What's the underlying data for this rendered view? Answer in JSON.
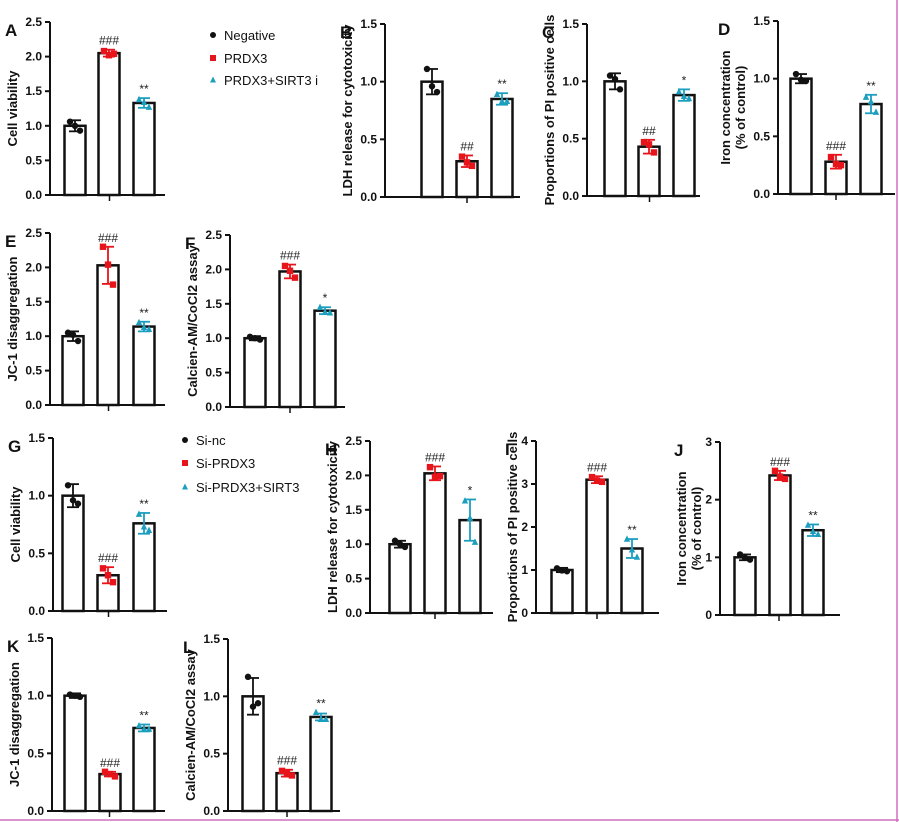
{
  "colors": {
    "group1": "#111111",
    "group2": "#e8141b",
    "group3": "#1c9fbf",
    "border": "#d070c0"
  },
  "legends": [
    {
      "entries": [
        {
          "label": "Negative",
          "marker": "circle",
          "color": "#111111"
        },
        {
          "label": "PRDX3",
          "marker": "square",
          "color": "#e8141b"
        },
        {
          "label": "PRDX3+SIRT3 i",
          "marker": "triangle",
          "color": "#1c9fbf"
        }
      ]
    },
    {
      "entries": [
        {
          "label": "Si-nc",
          "marker": "circle",
          "color": "#111111"
        },
        {
          "label": "Si-PRDX3",
          "marker": "square",
          "color": "#e8141b"
        },
        {
          "label": "Si-PRDX3+SIRT3",
          "marker": "triangle",
          "color": "#1c9fbf"
        }
      ]
    }
  ],
  "chart_data": [
    {
      "id": "A",
      "type": "bar",
      "ylabel": [
        "Cell viability"
      ],
      "ylim": [
        0,
        2.5
      ],
      "ticks": [
        "0.0",
        "0.5",
        "1.0",
        "1.5",
        "2.0",
        "2.5"
      ],
      "tickvals": [
        0,
        0.5,
        1,
        1.5,
        2,
        2.5
      ],
      "values": [
        1.0,
        2.05,
        1.33
      ],
      "errors": [
        0.08,
        0.05,
        0.07
      ],
      "points": [
        [
          1.06,
          0.93,
          1.0
        ],
        [
          2.08,
          2.04,
          2.02
        ],
        [
          1.38,
          1.27,
          1.34
        ]
      ],
      "annotations": [
        "",
        "###",
        "**"
      ],
      "legend": 0
    },
    {
      "id": "B",
      "type": "bar",
      "ylabel": [
        "LDH release for cytotoxicity"
      ],
      "ylim": [
        0,
        1.5
      ],
      "ticks": [
        "0.0",
        "0.5",
        "1.0",
        "1.5"
      ],
      "tickvals": [
        0,
        0.5,
        1,
        1.5
      ],
      "values": [
        1.0,
        0.31,
        0.85
      ],
      "errors": [
        0.11,
        0.05,
        0.05
      ],
      "points": [
        [
          1.11,
          0.91,
          0.96
        ],
        [
          0.35,
          0.27,
          0.3
        ],
        [
          0.89,
          0.83,
          0.83
        ]
      ],
      "annotations": [
        "",
        "##",
        "**"
      ],
      "legend": 0
    },
    {
      "id": "C",
      "type": "bar",
      "ylabel": [
        "Proportions of PI positive cells"
      ],
      "ylim": [
        0,
        1.5
      ],
      "ticks": [
        "0.0",
        "0.5",
        "1.0",
        "1.5"
      ],
      "tickvals": [
        0,
        0.5,
        1,
        1.5
      ],
      "values": [
        1.0,
        0.43,
        0.88
      ],
      "errors": [
        0.07,
        0.06,
        0.05
      ],
      "points": [
        [
          1.05,
          0.93,
          1.02
        ],
        [
          0.47,
          0.38,
          0.45
        ],
        [
          0.91,
          0.85,
          0.87
        ]
      ],
      "annotations": [
        "",
        "##",
        "*"
      ],
      "legend": 0
    },
    {
      "id": "D",
      "type": "bar",
      "ylabel": [
        "Iron concentration",
        "(% of control)"
      ],
      "ylim": [
        0,
        1.5
      ],
      "ticks": [
        "0.0",
        "0.5",
        "1.0",
        "1.5"
      ],
      "tickvals": [
        0,
        0.5,
        1,
        1.5
      ],
      "values": [
        1.0,
        0.28,
        0.78
      ],
      "errors": [
        0.04,
        0.06,
        0.08
      ],
      "points": [
        [
          1.04,
          0.98,
          0.99
        ],
        [
          0.32,
          0.25,
          0.26
        ],
        [
          0.84,
          0.71,
          0.8
        ]
      ],
      "annotations": [
        "",
        "###",
        "**"
      ],
      "legend": 0
    },
    {
      "id": "E",
      "type": "bar",
      "ylabel": [
        "JC-1 disaggregation"
      ],
      "ylim": [
        0,
        2.5
      ],
      "ticks": [
        "0.0",
        "0.5",
        "1.0",
        "1.5",
        "2.0",
        "2.5"
      ],
      "tickvals": [
        0,
        0.5,
        1,
        1.5,
        2,
        2.5
      ],
      "values": [
        1.0,
        2.03,
        1.14
      ],
      "errors": [
        0.07,
        0.27,
        0.07
      ],
      "points": [
        [
          1.05,
          0.93,
          1.02
        ],
        [
          2.3,
          1.75,
          2.04
        ],
        [
          1.2,
          1.1,
          1.13
        ]
      ],
      "annotations": [
        "",
        "###",
        "**"
      ],
      "legend": 0
    },
    {
      "id": "F",
      "type": "bar",
      "ylabel": [
        "Calcien-AM/CoCl2 assay"
      ],
      "ylim": [
        0,
        2.5
      ],
      "ticks": [
        "0.0",
        "0.5",
        "1.0",
        "1.5",
        "2.0",
        "2.5"
      ],
      "tickvals": [
        0,
        0.5,
        1,
        1.5,
        2,
        2.5
      ],
      "values": [
        1.0,
        1.97,
        1.4
      ],
      "errors": [
        0.03,
        0.1,
        0.05
      ],
      "points": [
        [
          1.02,
          0.98,
          1.0
        ],
        [
          2.05,
          1.88,
          1.98
        ],
        [
          1.45,
          1.37,
          1.38
        ]
      ],
      "annotations": [
        "",
        "###",
        "*"
      ],
      "legend": 0
    },
    {
      "id": "G",
      "type": "bar",
      "ylabel": [
        "Cell viability"
      ],
      "ylim": [
        0,
        1.5
      ],
      "ticks": [
        "0.0",
        "0.5",
        "1.0",
        "1.5"
      ],
      "tickvals": [
        0,
        0.5,
        1,
        1.5
      ],
      "values": [
        1.0,
        0.31,
        0.76
      ],
      "errors": [
        0.1,
        0.07,
        0.09
      ],
      "points": [
        [
          1.09,
          0.93,
          0.96
        ],
        [
          0.37,
          0.25,
          0.31
        ],
        [
          0.84,
          0.7,
          0.73
        ]
      ],
      "annotations": [
        "",
        "###",
        "**"
      ],
      "legend": 1
    },
    {
      "id": "H",
      "type": "bar",
      "ylabel": [
        "LDH release for cytotoxicity"
      ],
      "ylim": [
        0,
        2.5
      ],
      "ticks": [
        "0.0",
        "0.5",
        "1.0",
        "1.5",
        "2.0",
        "2.5"
      ],
      "tickvals": [
        0,
        0.5,
        1,
        1.5,
        2,
        2.5
      ],
      "values": [
        1.0,
        2.03,
        1.35
      ],
      "errors": [
        0.05,
        0.1,
        0.3
      ],
      "points": [
        [
          1.05,
          0.96,
          1.0
        ],
        [
          2.12,
          1.99,
          1.98
        ],
        [
          1.63,
          1.03,
          1.38
        ]
      ],
      "annotations": [
        "",
        "###",
        "*"
      ],
      "legend": 1
    },
    {
      "id": "I",
      "type": "bar",
      "ylabel": [
        "Proportions of PI positive cells"
      ],
      "ylim": [
        0,
        4
      ],
      "ticks": [
        "0",
        "1",
        "2",
        "3",
        "4"
      ],
      "tickvals": [
        0,
        1,
        2,
        3,
        4
      ],
      "values": [
        1.0,
        3.1,
        1.5
      ],
      "errors": [
        0.05,
        0.08,
        0.22
      ],
      "points": [
        [
          1.04,
          0.97,
          0.99
        ],
        [
          3.16,
          3.05,
          3.08
        ],
        [
          1.72,
          1.3,
          1.47
        ]
      ],
      "annotations": [
        "",
        "###",
        "**"
      ],
      "legend": 1
    },
    {
      "id": "J",
      "type": "bar",
      "ylabel": [
        "Iron concentration",
        "(% of control)"
      ],
      "ylim": [
        0,
        3
      ],
      "ticks": [
        "0",
        "1",
        "2",
        "3"
      ],
      "tickvals": [
        0,
        1,
        2,
        3
      ],
      "values": [
        1.0,
        2.42,
        1.47
      ],
      "errors": [
        0.05,
        0.08,
        0.1
      ],
      "points": [
        [
          1.05,
          0.96,
          0.99
        ],
        [
          2.5,
          2.36,
          2.4
        ],
        [
          1.56,
          1.4,
          1.45
        ]
      ],
      "annotations": [
        "",
        "###",
        "**"
      ],
      "legend": 1
    },
    {
      "id": "K",
      "type": "bar",
      "ylabel": [
        "JC-1 disaggregation"
      ],
      "ylim": [
        0,
        1.5
      ],
      "ticks": [
        "0.0",
        "0.5",
        "1.0",
        "1.5"
      ],
      "tickvals": [
        0,
        0.5,
        1,
        1.5
      ],
      "values": [
        1.0,
        0.32,
        0.72
      ],
      "errors": [
        0.02,
        0.02,
        0.03
      ],
      "points": [
        [
          1.01,
          0.99,
          1.0
        ],
        [
          0.34,
          0.3,
          0.32
        ],
        [
          0.74,
          0.71,
          0.71
        ]
      ],
      "annotations": [
        "",
        "###",
        "**"
      ],
      "legend": 1
    },
    {
      "id": "L",
      "type": "bar",
      "ylabel": [
        "Calcien-AM/CoCl2 assay"
      ],
      "ylim": [
        0,
        1.5
      ],
      "ticks": [
        "0.0",
        "0.5",
        "1.0",
        "1.5"
      ],
      "tickvals": [
        0,
        0.5,
        1,
        1.5
      ],
      "values": [
        1.0,
        0.33,
        0.82
      ],
      "errors": [
        0.16,
        0.03,
        0.03
      ],
      "points": [
        [
          1.17,
          0.94,
          0.91
        ],
        [
          0.35,
          0.31,
          0.33
        ],
        [
          0.86,
          0.8,
          0.8
        ]
      ],
      "annotations": [
        "",
        "###",
        "**"
      ],
      "legend": 1
    }
  ]
}
